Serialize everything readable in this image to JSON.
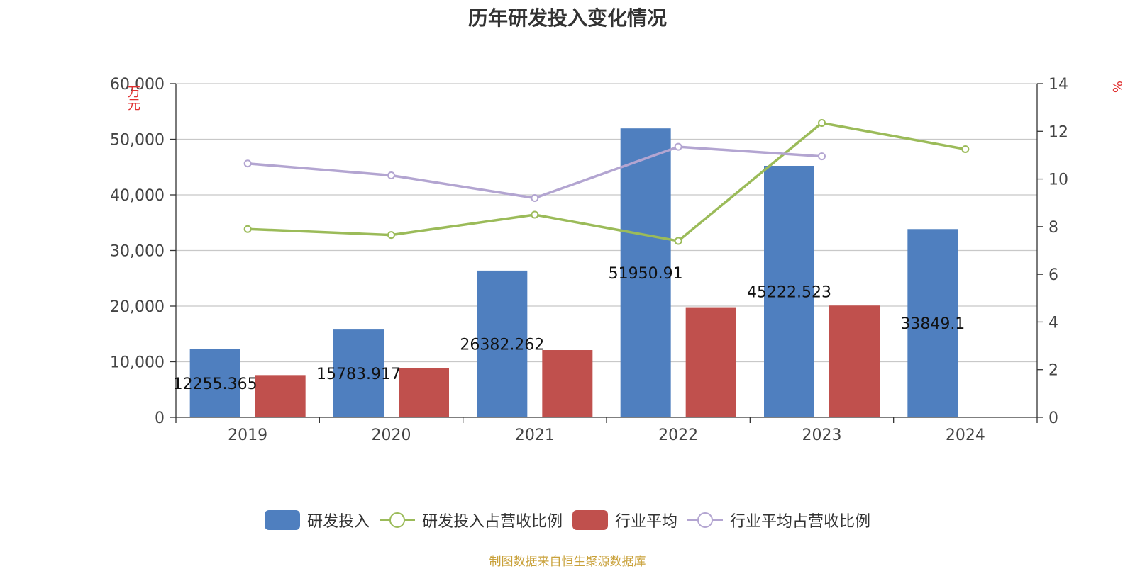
{
  "chart_data": {
    "type": "bar",
    "title": "历年研发投入变化情况",
    "categories": [
      "2019",
      "2020",
      "2021",
      "2022",
      "2023",
      "2024"
    ],
    "y_left": {
      "unit": "万元",
      "ylim": [
        0,
        60000
      ],
      "ticks": [
        "0",
        "10,000",
        "20,000",
        "30,000",
        "40,000",
        "50,000",
        "60,000"
      ]
    },
    "y_right": {
      "unit": "%",
      "ylim": [
        0,
        14
      ],
      "ticks": [
        "0",
        "2",
        "4",
        "6",
        "8",
        "10",
        "12",
        "14"
      ]
    },
    "series": [
      {
        "name": "研发投入",
        "kind": "bar",
        "axis": "left",
        "color": "#4f7fbf",
        "values": [
          12255.365,
          15783.917,
          26382.262,
          51950.91,
          45222.523,
          33849.1
        ],
        "labels": [
          "12255.365",
          "15783.917",
          "26382.262",
          "51950.91",
          "45222.523",
          "33849.1"
        ]
      },
      {
        "name": "研发投入占营收比例",
        "kind": "line",
        "axis": "right",
        "color": "#9bbb59",
        "values": [
          7.9,
          7.65,
          8.5,
          7.4,
          12.35,
          11.25
        ]
      },
      {
        "name": "行业平均",
        "kind": "bar",
        "axis": "left",
        "color": "#c0504d",
        "values": [
          7600,
          8800,
          12100,
          19800,
          20100,
          null
        ]
      },
      {
        "name": "行业平均占营收比例",
        "kind": "line",
        "axis": "right",
        "color": "#b3a5d1",
        "values": [
          10.65,
          10.15,
          9.2,
          11.35,
          10.95,
          null
        ]
      }
    ],
    "grid": true,
    "legend_position": "bottom"
  },
  "source_note": "制图数据来自恒生聚源数据库"
}
